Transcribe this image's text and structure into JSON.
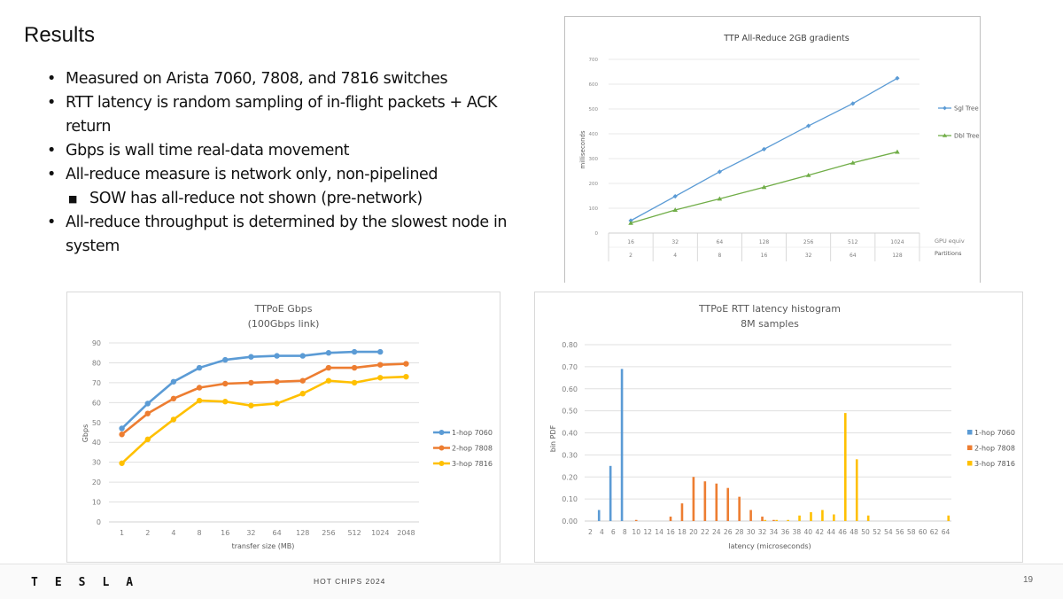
{
  "slide": {
    "title": "Results",
    "bullets": [
      {
        "text": "Measured on Arista 7060, 7808, and 7816 switches",
        "level": 1
      },
      {
        "text": "RTT latency is random sampling of in-flight packets + ACK return",
        "level": 1
      },
      {
        "text": "Gbps is wall time real-data movement",
        "level": 1
      },
      {
        "text": "All-reduce measure is network only, non-pipelined",
        "level": 1
      },
      {
        "text": "SOW has all-reduce not shown (pre-network)",
        "level": 2
      },
      {
        "text": "All-reduce throughput is determined by the slowest node in system",
        "level": 1
      }
    ],
    "bullet_glyph": "•",
    "sub_bullet_glyph": "■"
  },
  "footer": {
    "logo": "TESLA",
    "conference": "HOT CHIPS 2024",
    "page_number": "19"
  },
  "chart_data": [
    {
      "id": "allreduce",
      "type": "line",
      "title": "TTP All-Reduce 2GB gradients",
      "ylabel": "milliseconds",
      "ylim": [
        0,
        700
      ],
      "yticks": [
        "0",
        "100",
        "200",
        "300",
        "400",
        "500",
        "600",
        "700"
      ],
      "categories": [
        "16",
        "32",
        "64",
        "128",
        "256",
        "512",
        "1024"
      ],
      "categories2": [
        "2",
        "4",
        "8",
        "16",
        "32",
        "64",
        "128"
      ],
      "category_label": "GPU equiv",
      "category2_label": "Partitions",
      "grid": true,
      "legend": "right",
      "series": [
        {
          "name": "Sgl Tree",
          "color": "#5b9bd5",
          "marker": "diamond",
          "values": [
            50,
            148,
            247,
            338,
            432,
            522,
            624
          ]
        },
        {
          "name": "Dbl Tree",
          "color": "#70ad47",
          "marker": "triangle",
          "values": [
            40,
            93,
            138,
            185,
            233,
            283,
            327
          ]
        }
      ]
    },
    {
      "id": "gbps",
      "type": "line",
      "title": "TTPoE Gbps",
      "subtitle": "(100Gbps link)",
      "xlabel": "transfer size (MB)",
      "ylabel": "Gbps",
      "ylim": [
        0,
        90
      ],
      "yticks": [
        "0",
        "10",
        "20",
        "30",
        "40",
        "50",
        "60",
        "70",
        "80",
        "90"
      ],
      "categories": [
        "1",
        "2",
        "4",
        "8",
        "16",
        "32",
        "64",
        "128",
        "256",
        "512",
        "1024",
        "2048"
      ],
      "grid": true,
      "legend": "right",
      "series": [
        {
          "name": "1-hop 7060",
          "color": "#5b9bd5",
          "values": [
            47,
            59.5,
            70.5,
            77.5,
            81.5,
            83,
            83.5,
            83.5,
            85,
            85.5,
            85.5,
            null
          ]
        },
        {
          "name": "2-hop 7808",
          "color": "#ed7d31",
          "values": [
            44,
            54.5,
            62,
            67.5,
            69.5,
            70,
            70.5,
            71,
            77.5,
            77.5,
            79,
            79.5
          ]
        },
        {
          "name": "3-hop 7816",
          "color": "#ffc000",
          "values": [
            29.5,
            41.5,
            51.5,
            61,
            60.5,
            58.5,
            59.5,
            64.5,
            71,
            70,
            72.5,
            73
          ]
        }
      ]
    },
    {
      "id": "histogram",
      "type": "bar",
      "title": "TTPoE RTT latency histogram",
      "subtitle": "8M samples",
      "xlabel": "latency (microseconds)",
      "ylabel": "bin PDF",
      "ylim": [
        0,
        0.8
      ],
      "yticks": [
        "0.00",
        "0.10",
        "0.20",
        "0.30",
        "0.40",
        "0.50",
        "0.60",
        "0.70",
        "0.80"
      ],
      "categories": [
        "2",
        "4",
        "6",
        "8",
        "10",
        "12",
        "14",
        "16",
        "18",
        "20",
        "22",
        "24",
        "26",
        "28",
        "30",
        "32",
        "34",
        "36",
        "38",
        "40",
        "42",
        "44",
        "46",
        "48",
        "50",
        "52",
        "54",
        "56",
        "58",
        "60",
        "62",
        "64"
      ],
      "grid": true,
      "legend": "right",
      "series": [
        {
          "name": "1-hop 7060",
          "color": "#5b9bd5",
          "values": [
            0,
            0.05,
            0.25,
            0.69,
            0,
            0,
            0,
            0,
            0,
            0,
            0,
            0,
            0,
            0,
            0,
            0,
            0,
            0,
            0,
            0,
            0,
            0,
            0,
            0,
            0,
            0,
            0,
            0,
            0,
            0,
            0,
            0
          ]
        },
        {
          "name": "2-hop 7808",
          "color": "#ed7d31",
          "values": [
            0,
            0,
            0,
            0,
            0.005,
            0,
            0,
            0.02,
            0.08,
            0.2,
            0.18,
            0.17,
            0.15,
            0.11,
            0.05,
            0.02,
            0.005,
            0,
            0,
            0,
            0,
            0,
            0,
            0,
            0,
            0,
            0,
            0,
            0,
            0,
            0,
            0
          ]
        },
        {
          "name": "3-hop 7816",
          "color": "#ffc000",
          "values": [
            0,
            0,
            0,
            0,
            0,
            0,
            0,
            0,
            0,
            0,
            0,
            0,
            0,
            0,
            0,
            0.005,
            0.005,
            0.005,
            0.025,
            0.04,
            0.05,
            0.03,
            0.49,
            0.28,
            0.025,
            0,
            0,
            0,
            0,
            0,
            0,
            0.025
          ]
        }
      ]
    }
  ]
}
